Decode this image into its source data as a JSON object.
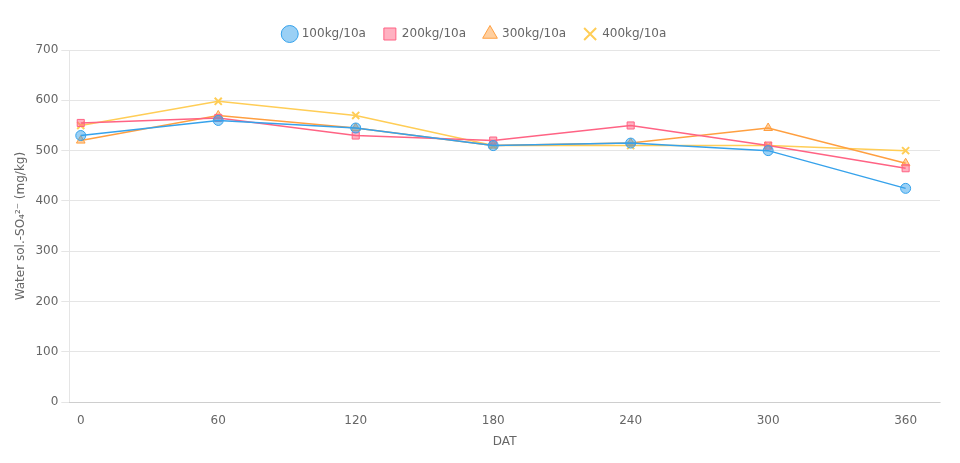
{
  "chart_data": {
    "type": "line",
    "xlabel": "DAT",
    "ylabel": "Water sol.-SO₄²⁻ (mg/kg)",
    "x": [
      0,
      60,
      120,
      180,
      240,
      300,
      360
    ],
    "series": [
      {
        "name": "100kg/10a",
        "marker": "circle",
        "values": [
          530,
          560,
          545,
          510,
          515,
          500,
          425
        ]
      },
      {
        "name": "200kg/10a",
        "marker": "square",
        "values": [
          555,
          565,
          530,
          520,
          550,
          510,
          465
        ]
      },
      {
        "name": "300kg/10a",
        "marker": "triangle",
        "values": [
          520,
          570,
          545,
          510,
          515,
          545,
          475
        ]
      },
      {
        "name": "400kg/10a",
        "marker": "x",
        "values": [
          550,
          598,
          570,
          510,
          510,
          510,
          500
        ]
      }
    ],
    "xlim": [
      -5,
      375
    ],
    "xticks": [
      0,
      60,
      120,
      180,
      240,
      300,
      360
    ],
    "ylim": [
      0,
      700
    ],
    "yticks": [
      0,
      100,
      200,
      300,
      400,
      500,
      600,
      700
    ],
    "grid": "y",
    "legend": "top"
  }
}
